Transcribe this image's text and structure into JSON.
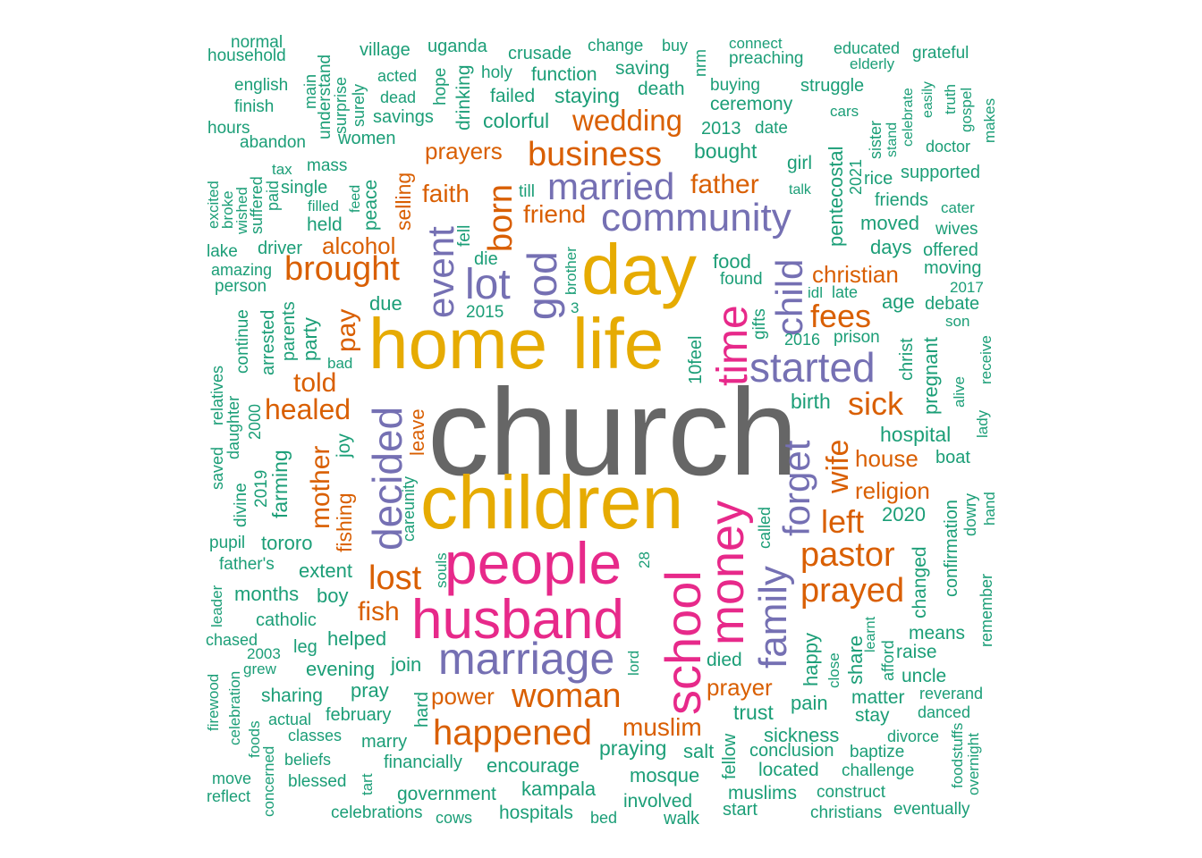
{
  "palette": {
    "grey": "#666666",
    "gold": "#e6ab02",
    "pink": "#e7298a",
    "purple": "#7570b3",
    "orange": "#d95f02",
    "teal": "#1b9e77"
  },
  "words": {
    "church": "church",
    "children": "children",
    "home": "home",
    "life": "life",
    "day": "day",
    "people": "people",
    "husband": "husband",
    "school": "school",
    "money": "money",
    "time": "time",
    "marriage": "marriage",
    "community": "community",
    "started": "started",
    "married": "married",
    "decided": "decided",
    "event": "event",
    "lot": "lot",
    "god": "god",
    "family": "family",
    "forget": "forget",
    "child": "child",
    "business": "business",
    "wedding": "wedding",
    "woman": "woman",
    "happened": "happened",
    "prayed": "prayed",
    "pastor": "pastor",
    "lost": "lost",
    "brought": "brought",
    "born": "born",
    "left": "left",
    "sick": "sick",
    "fees": "fees",
    "healed": "healed",
    "told": "told",
    "mother": "mother",
    "father": "father",
    "faith": "faith",
    "friend": "friend",
    "prayers": "prayers",
    "alcohol": "alcohol",
    "pay": "pay",
    "fish": "fish",
    "wife": "wife",
    "house": "house",
    "religion": "religion",
    "muslim": "muslim",
    "power": "power",
    "prayer": "prayer",
    "christian": "christian",
    "normal": "normal",
    "household": "household",
    "english": "english",
    "finish": "finish",
    "hours": "hours",
    "abandon": "abandon",
    "main": "main",
    "understand": "understand",
    "surprise": "surprise",
    "surely": "surely",
    "village": "village",
    "acted": "acted",
    "dead": "dead",
    "hope": "hope",
    "uganda": "uganda",
    "drinking": "drinking",
    "crusade": "crusade",
    "holy": "holy",
    "function": "function",
    "change": "change",
    "buy": "buy",
    "nrm": "nrm",
    "saving": "saving",
    "connect": "connect",
    "preaching": "preaching",
    "educated": "educated",
    "elderly": "elderly",
    "grateful": "grateful",
    "failed": "failed",
    "staying": "staying",
    "death": "death",
    "buying": "buying",
    "struggle": "struggle",
    "celebrate": "celebrate",
    "easily": "easily",
    "truth": "truth",
    "gospel": "gospel",
    "makes": "makes",
    "savings": "savings",
    "colorful": "colorful",
    "ceremony": "ceremony",
    "cars": "cars",
    "sister": "sister",
    "stand": "stand",
    "women": "women",
    "2013": "2013",
    "date": "date",
    "doctor": "doctor",
    "mass": "mass",
    "tax": "tax",
    "bought": "bought",
    "girl": "girl",
    "pentecostal": "pentecostal",
    "2021": "2021",
    "supported": "supported",
    "excited": "excited",
    "broke": "broke",
    "wished": "wished",
    "suffered": "suffered",
    "paid": "paid",
    "single": "single",
    "feed": "feed",
    "peace": "peace",
    "selling": "selling",
    "filled": "filled",
    "till": "till",
    "talk": "talk",
    "rice": "rice",
    "friends": "friends",
    "cater": "cater",
    "held": "held",
    "fell": "fell",
    "moved": "moved",
    "wives": "wives",
    "lake": "lake",
    "driver": "driver",
    "die": "die",
    "brother": "brother",
    "days": "days",
    "offered": "offered",
    "amazing": "amazing",
    "food": "food",
    "moving": "moving",
    "person": "person",
    "found": "found",
    "2017": "2017",
    "idl": "idl",
    "late": "late",
    "due": "due",
    "2015": "2015",
    "3": "3",
    "gifts": "gifts",
    "age": "age",
    "debate": "debate",
    "continue": "continue",
    "arrested": "arrested",
    "parents": "parents",
    "party": "party",
    "son": "son",
    "2016": "2016",
    "prison": "prison",
    "christ": "christ",
    "pregnant": "pregnant",
    "10feel": "10feel",
    "bad": "bad",
    "receive": "receive",
    "alive": "alive",
    "saved": "saved",
    "relatives": "relatives",
    "daughter": "daughter",
    "2000": "2000",
    "birth": "birth",
    "leave": "leave",
    "lady": "lady",
    "joy": "joy",
    "hospital": "hospital",
    "boat": "boat",
    "farming": "farming",
    "divine": "divine",
    "2019": "2019",
    "careunity": "careunity",
    "hand": "hand",
    "dowry": "dowry",
    "confirmation": "confirmation",
    "fishing": "fishing",
    "2020": "2020",
    "pupil": "pupil",
    "tororo": "tororo",
    "called": "called",
    "souls": "souls",
    "28": "28",
    "changed": "changed",
    "father's": "father's",
    "extent": "extent",
    "remember": "remember",
    "months": "months",
    "boy": "boy",
    "leader": "leader",
    "catholic": "catholic",
    "happy": "happy",
    "learnt": "learnt",
    "means": "means",
    "chased": "chased",
    "afford": "afford",
    "leg": "leg",
    "helped": "helped",
    "2003": "2003",
    "join": "join",
    "lord": "lord",
    "share": "share",
    "raise": "raise",
    "grew": "grew",
    "evening": "evening",
    "died": "died",
    "close": "close",
    "uncle": "uncle",
    "firewood": "firewood",
    "celebration": "celebration",
    "pray": "pray",
    "sharing": "sharing",
    "hard": "hard",
    "pain": "pain",
    "matter": "matter",
    "reverand": "reverand",
    "trust": "trust",
    "stay": "stay",
    "danced": "danced",
    "foods": "foods",
    "actual": "actual",
    "february": "february",
    "classes": "classes",
    "sickness": "sickness",
    "divorce": "divorce",
    "foodstuffs": "foodstuffs",
    "overnight": "overnight",
    "marry": "marry",
    "praying": "praying",
    "salt": "salt",
    "fellow": "fellow",
    "conclusion": "conclusion",
    "baptize": "baptize",
    "beliefs": "beliefs",
    "financially": "financially",
    "encourage": "encourage",
    "located": "located",
    "challenge": "challenge",
    "move": "move",
    "mosque": "mosque",
    "concerned": "concerned",
    "blessed": "blessed",
    "tart": "tart",
    "reflect": "reflect",
    "kampala": "kampala",
    "muslims": "muslims",
    "construct": "construct",
    "government": "government",
    "involved": "involved",
    "start": "start",
    "eventually": "eventually",
    "celebrations": "celebrations",
    "cows": "cows",
    "hospitals": "hospitals",
    "bed": "bed",
    "walk": "walk",
    "christians": "christians"
  }
}
